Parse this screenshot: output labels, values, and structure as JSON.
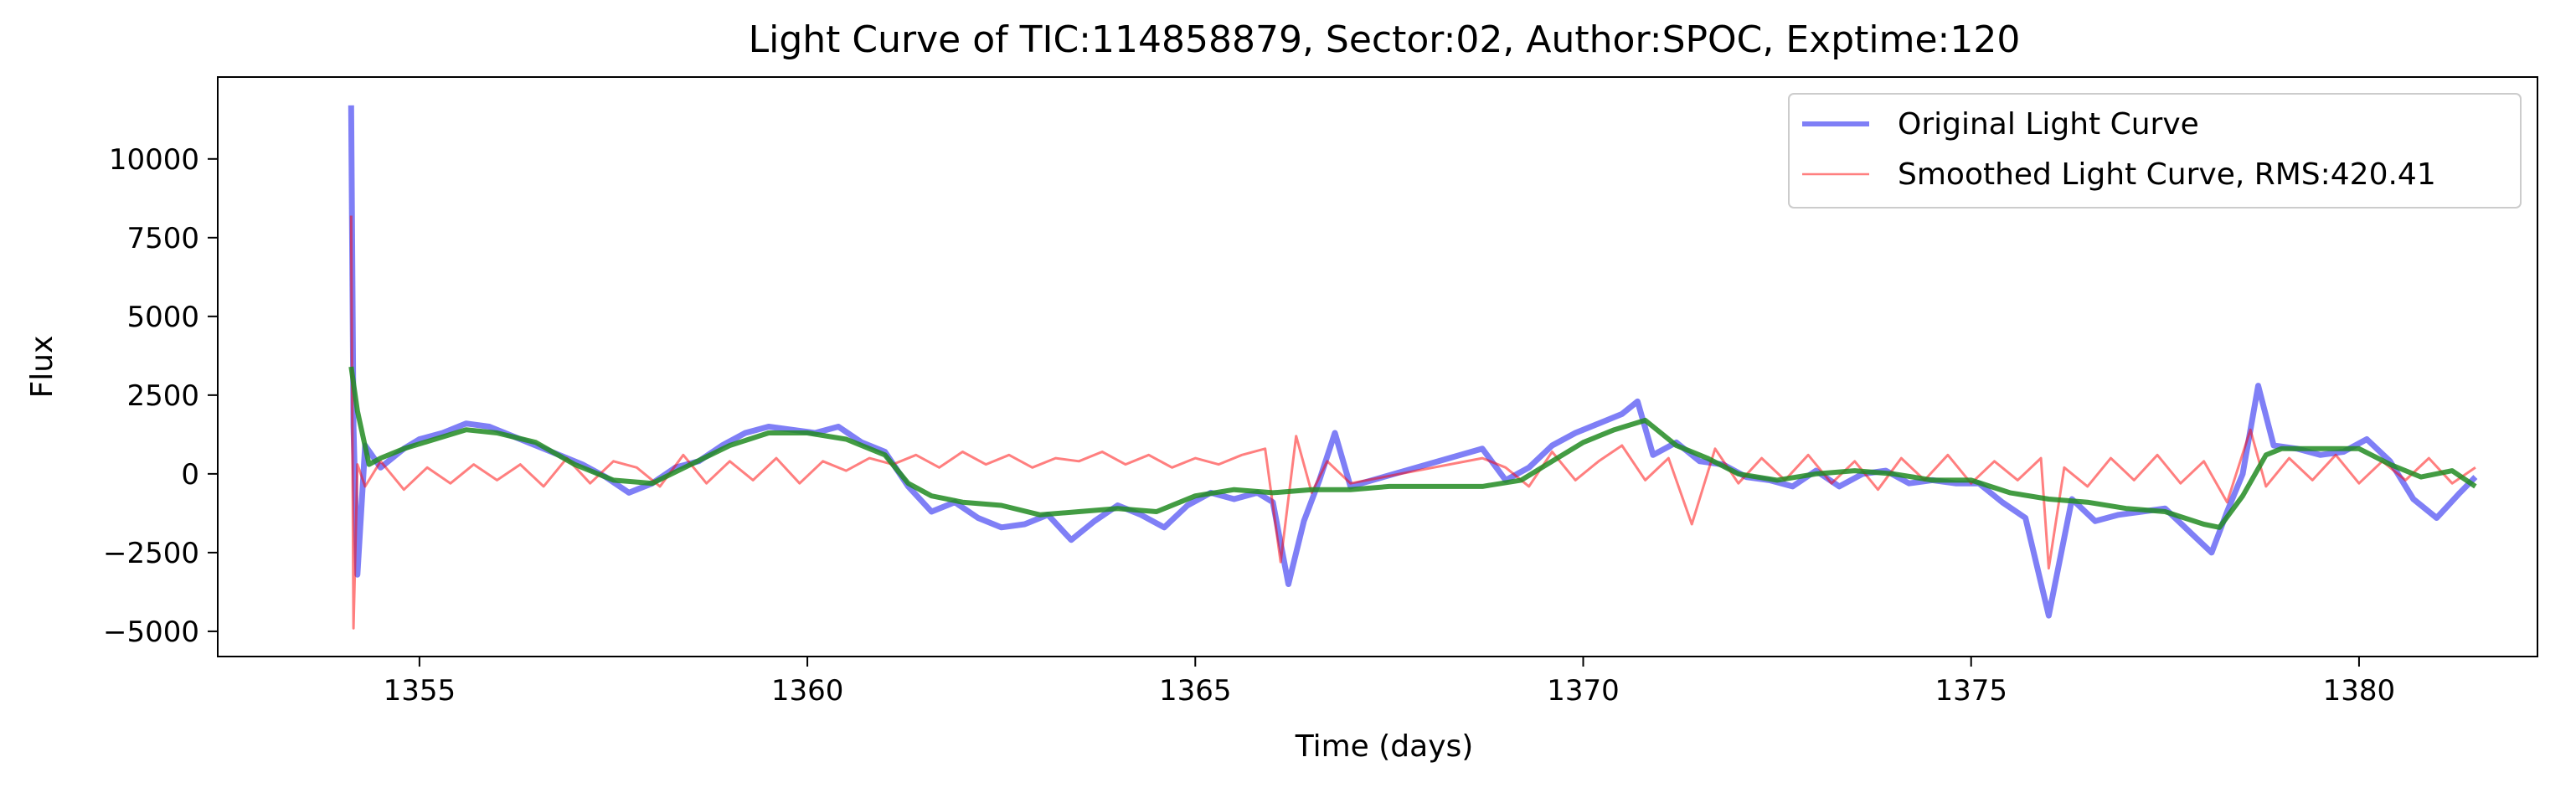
{
  "chart_data": {
    "type": "line",
    "title": "Light Curve of TIC:114858879, Sector:02, Author:SPOC, Exptime:120",
    "xlabel": "Time (days)",
    "ylabel": "Flux",
    "xlim": [
      1352.4,
      1382.3
    ],
    "ylim": [
      -5800,
      12600
    ],
    "xticks": [
      1355,
      1360,
      1365,
      1370,
      1375,
      1380
    ],
    "yticks": [
      -5000,
      -2500,
      0,
      2500,
      5000,
      7500,
      10000
    ],
    "grid": false,
    "legend": {
      "placement": "top-right"
    },
    "series": [
      {
        "name": "Original Light Curve",
        "color": "#0000ee",
        "opacity": 0.5,
        "x": [
          1354.12,
          1354.15,
          1354.2,
          1354.3,
          1354.5,
          1354.8,
          1355.0,
          1355.3,
          1355.6,
          1355.9,
          1356.2,
          1356.5,
          1356.8,
          1357.1,
          1357.4,
          1357.7,
          1358.0,
          1358.3,
          1358.6,
          1358.9,
          1359.2,
          1359.5,
          1359.8,
          1360.1,
          1360.4,
          1360.7,
          1361.0,
          1361.3,
          1361.6,
          1361.9,
          1362.2,
          1362.5,
          1362.8,
          1363.1,
          1363.4,
          1363.7,
          1364.0,
          1364.3,
          1364.6,
          1364.9,
          1365.2,
          1365.5,
          1365.8,
          1366.0,
          1366.2,
          1366.4,
          1366.6,
          1366.8,
          1367.0,
          1368.7,
          1369.0,
          1369.3,
          1369.6,
          1369.9,
          1370.2,
          1370.5,
          1370.7,
          1370.9,
          1371.2,
          1371.5,
          1371.8,
          1372.1,
          1372.4,
          1372.7,
          1373.0,
          1373.3,
          1373.6,
          1373.9,
          1374.2,
          1374.5,
          1374.8,
          1375.1,
          1375.4,
          1375.7,
          1376.0,
          1376.3,
          1376.6,
          1376.9,
          1377.2,
          1377.5,
          1377.8,
          1378.1,
          1378.3,
          1378.5,
          1378.7,
          1378.9,
          1379.2,
          1379.5,
          1379.8,
          1380.1,
          1380.4,
          1380.7,
          1381.0,
          1381.3,
          1381.5
        ],
        "y": [
          11700,
          1500,
          -3200,
          900,
          200,
          800,
          1100,
          1300,
          1600,
          1500,
          1200,
          900,
          600,
          300,
          -100,
          -600,
          -300,
          200,
          400,
          900,
          1300,
          1500,
          1400,
          1300,
          1500,
          1000,
          700,
          -400,
          -1200,
          -900,
          -1400,
          -1700,
          -1600,
          -1300,
          -2100,
          -1500,
          -1000,
          -1300,
          -1700,
          -1000,
          -600,
          -800,
          -600,
          -900,
          -3500,
          -1500,
          -200,
          1300,
          -400,
          800,
          -200,
          200,
          900,
          1300,
          1600,
          1900,
          2300,
          600,
          1000,
          400,
          300,
          -100,
          -200,
          -400,
          100,
          -400,
          0,
          100,
          -300,
          -200,
          -300,
          -300,
          -900,
          -1400,
          -4500,
          -800,
          -1500,
          -1300,
          -1200,
          -1100,
          -1800,
          -2500,
          -1200,
          0,
          2800,
          900,
          800,
          600,
          700,
          1100,
          400,
          -800,
          -1400,
          -600,
          -100
        ]
      },
      {
        "name": "Smoothed Light Curve, RMS:420.41",
        "color": "#ff0000",
        "opacity": 0.5,
        "x": [
          1354.12,
          1354.15,
          1354.2,
          1354.3,
          1354.5,
          1354.8,
          1355.1,
          1355.4,
          1355.7,
          1356.0,
          1356.3,
          1356.6,
          1356.9,
          1357.2,
          1357.5,
          1357.8,
          1358.1,
          1358.4,
          1358.7,
          1359.0,
          1359.3,
          1359.6,
          1359.9,
          1360.2,
          1360.5,
          1360.8,
          1361.1,
          1361.4,
          1361.7,
          1362.0,
          1362.3,
          1362.6,
          1362.9,
          1363.2,
          1363.5,
          1363.8,
          1364.1,
          1364.4,
          1364.7,
          1365.0,
          1365.3,
          1365.6,
          1365.9,
          1366.1,
          1366.3,
          1366.5,
          1366.7,
          1367.0,
          1368.7,
          1369.0,
          1369.3,
          1369.6,
          1369.9,
          1370.2,
          1370.5,
          1370.8,
          1371.1,
          1371.4,
          1371.7,
          1372.0,
          1372.3,
          1372.6,
          1372.9,
          1373.2,
          1373.5,
          1373.8,
          1374.1,
          1374.4,
          1374.7,
          1375.0,
          1375.3,
          1375.6,
          1375.9,
          1376.0,
          1376.2,
          1376.5,
          1376.8,
          1377.1,
          1377.4,
          1377.7,
          1378.0,
          1378.3,
          1378.6,
          1378.8,
          1379.1,
          1379.4,
          1379.7,
          1380.0,
          1380.3,
          1380.6,
          1380.9,
          1381.2,
          1381.5
        ],
        "y": [
          8200,
          -4900,
          300,
          -400,
          400,
          -500,
          200,
          -300,
          300,
          -200,
          300,
          -400,
          500,
          -300,
          400,
          200,
          -400,
          600,
          -300,
          400,
          -200,
          500,
          -300,
          400,
          100,
          500,
          300,
          600,
          200,
          700,
          300,
          600,
          200,
          500,
          400,
          700,
          300,
          600,
          200,
          500,
          300,
          600,
          800,
          -2800,
          1200,
          -600,
          400,
          -300,
          500,
          200,
          -400,
          700,
          -200,
          400,
          900,
          -200,
          500,
          -1600,
          800,
          -300,
          500,
          -200,
          600,
          -300,
          400,
          -500,
          500,
          -200,
          600,
          -300,
          400,
          -200,
          500,
          -3000,
          200,
          -400,
          500,
          -200,
          600,
          -300,
          400,
          -900,
          1400,
          -400,
          500,
          -200,
          600,
          -300,
          400,
          -200,
          500,
          -300,
          200
        ]
      },
      {
        "color": "#228b22",
        "opacity": 0.85,
        "x": [
          1354.12,
          1354.2,
          1354.35,
          1354.5,
          1354.8,
          1355.2,
          1355.6,
          1356.0,
          1356.5,
          1357.0,
          1357.5,
          1358.0,
          1358.5,
          1359.0,
          1359.5,
          1360.0,
          1360.5,
          1361.0,
          1361.3,
          1361.6,
          1362.0,
          1362.5,
          1363.0,
          1363.5,
          1364.0,
          1364.5,
          1365.0,
          1365.5,
          1366.0,
          1366.5,
          1367.0,
          1367.5,
          1368.0,
          1368.7,
          1369.2,
          1369.6,
          1370.0,
          1370.4,
          1370.8,
          1371.2,
          1371.6,
          1372.0,
          1372.5,
          1373.0,
          1373.5,
          1374.0,
          1374.5,
          1375.0,
          1375.5,
          1376.0,
          1376.5,
          1377.0,
          1377.5,
          1378.0,
          1378.2,
          1378.5,
          1378.8,
          1379.0,
          1379.3,
          1379.6,
          1380.0,
          1380.4,
          1380.8,
          1381.2,
          1381.5
        ],
        "y": [
          3400,
          2000,
          300,
          500,
          800,
          1100,
          1400,
          1300,
          1000,
          300,
          -200,
          -300,
          300,
          900,
          1300,
          1300,
          1100,
          600,
          -300,
          -700,
          -900,
          -1000,
          -1300,
          -1200,
          -1100,
          -1200,
          -700,
          -500,
          -600,
          -500,
          -500,
          -400,
          -400,
          -400,
          -200,
          400,
          1000,
          1400,
          1700,
          900,
          500,
          0,
          -200,
          0,
          100,
          0,
          -200,
          -200,
          -600,
          -800,
          -900,
          -1100,
          -1200,
          -1600,
          -1700,
          -700,
          600,
          800,
          800,
          800,
          800,
          300,
          -100,
          100,
          -400
        ]
      }
    ]
  }
}
